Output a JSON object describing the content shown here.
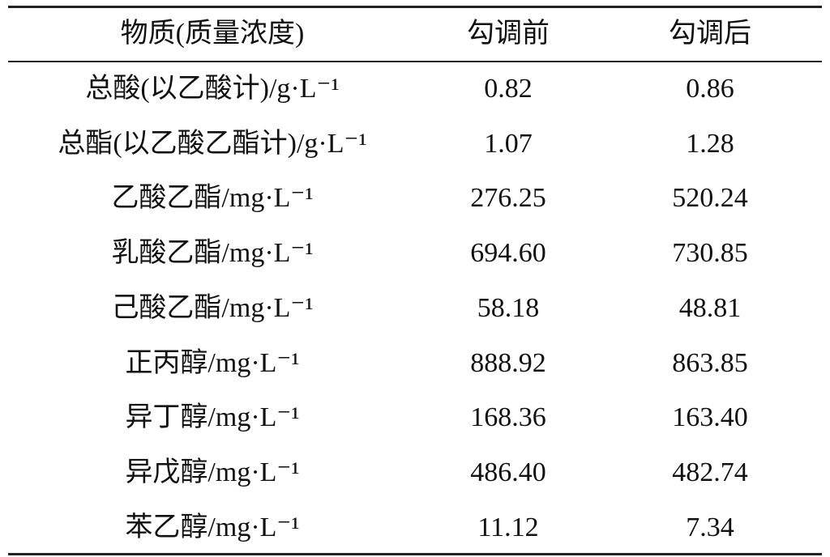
{
  "table": {
    "header": [
      "物质(质量浓度)",
      "勾调前",
      "勾调后"
    ],
    "rows": [
      [
        "总酸(以乙酸计)/g·L⁻¹",
        "0.82",
        "0.86"
      ],
      [
        "总酯(以乙酸乙酯计)/g·L⁻¹",
        "1.07",
        "1.28"
      ],
      [
        "乙酸乙酯/mg·L⁻¹",
        "276.25",
        "520.24"
      ],
      [
        "乳酸乙酯/mg·L⁻¹",
        "694.60",
        "730.85"
      ],
      [
        "己酸乙酯/mg·L⁻¹",
        "58.18",
        "48.81"
      ],
      [
        "正丙醇/mg·L⁻¹",
        "888.92",
        "863.85"
      ],
      [
        "异丁醇/mg·L⁻¹",
        "168.36",
        "163.40"
      ],
      [
        "异戊醇/mg·L⁻¹",
        "486.40",
        "482.74"
      ],
      [
        "苯乙醇/mg·L⁻¹",
        "11.12",
        "7.34"
      ]
    ]
  }
}
